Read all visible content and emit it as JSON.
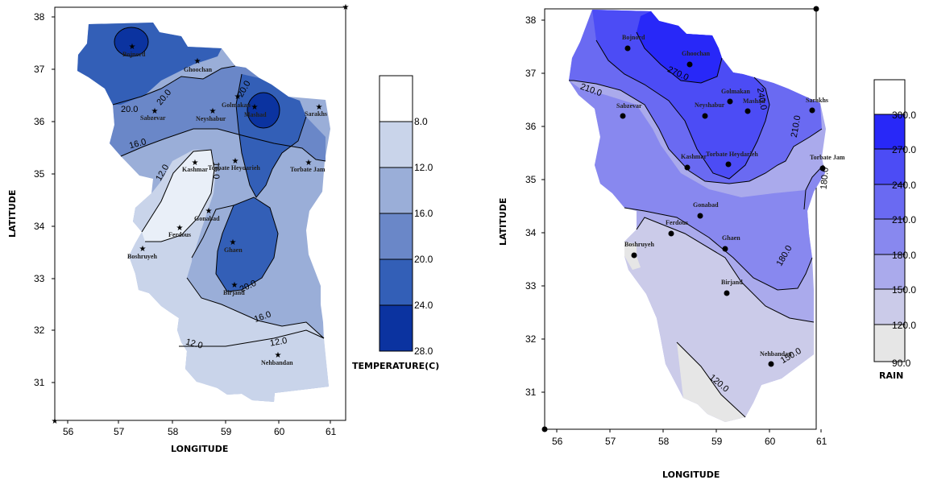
{
  "left_map": {
    "xlabel": "LONGITUDE",
    "ylabel": "LATITUDE",
    "x_ticks": [
      "56",
      "57",
      "58",
      "59",
      "60",
      "61"
    ],
    "y_ticks": [
      "38",
      "37",
      "36",
      "35",
      "34",
      "33",
      "32",
      "31"
    ],
    "legend_title": "TEMPERATURE(C)",
    "legend_ticks": [
      "8.0",
      "12.0",
      "16.0",
      "20.0",
      "24.0",
      "28.0"
    ],
    "contour_labels": [
      "20.0",
      "20.0",
      "20.0",
      "16.0",
      "12.0",
      "16.0",
      "20.0",
      "16.0",
      "12.0",
      "12.0"
    ],
    "stations": [
      "Bojnord",
      "Ghoochan",
      "Sabzevar",
      "Neyshabur",
      "Golmakan",
      "Mashad",
      "Sarakhs",
      "Kashmar",
      "Torbate Heydarieh",
      "Torbate Jam",
      "Gonabad",
      "Ferdous",
      "Boshruyeh",
      "Ghaen",
      "Birjand",
      "Nehbandan"
    ],
    "colors": {
      "c8": "#e9eff8",
      "c12": "#c9d4ea",
      "c16": "#9aaed8",
      "c20": "#6a87c8",
      "c24": "#335fb7",
      "c28": "#0b33a0"
    }
  },
  "right_map": {
    "xlabel": "LONGITUDE",
    "ylabel": "LATITUDE",
    "x_ticks": [
      "56",
      "57",
      "58",
      "59",
      "60",
      "61"
    ],
    "y_ticks": [
      "38",
      "37",
      "36",
      "35",
      "34",
      "33",
      "32",
      "31"
    ],
    "legend_title": "RAIN",
    "legend_ticks": [
      "300.0",
      "270.0",
      "240.0",
      "210.0",
      "180.0",
      "150.0",
      "120.0",
      "90.0"
    ],
    "contour_labels": [
      "270.0",
      "240.0",
      "210.0",
      "210.0",
      "180.0",
      "180.0",
      "150.0",
      "120.0"
    ],
    "stations": [
      "Bojnord",
      "Ghoochan",
      "Golmakan",
      "Mashad",
      "Sarakhs",
      "Sabzevar",
      "Neyshabur",
      "Kashmar",
      "Torbate Heydarieh",
      "Torbate Jam",
      "Gonabad",
      "Ferdous",
      "Boshruyeh",
      "Ghaen",
      "Birjand",
      "Nehbandan"
    ],
    "colors": {
      "c90": "#e6e6e6",
      "c120": "#cbcbe9",
      "c150": "#aaaaec",
      "c180": "#8888ef",
      "c210": "#6a6af2",
      "c240": "#4c4cf5",
      "c270": "#2828f8",
      "c300": "#ffffff"
    }
  }
}
